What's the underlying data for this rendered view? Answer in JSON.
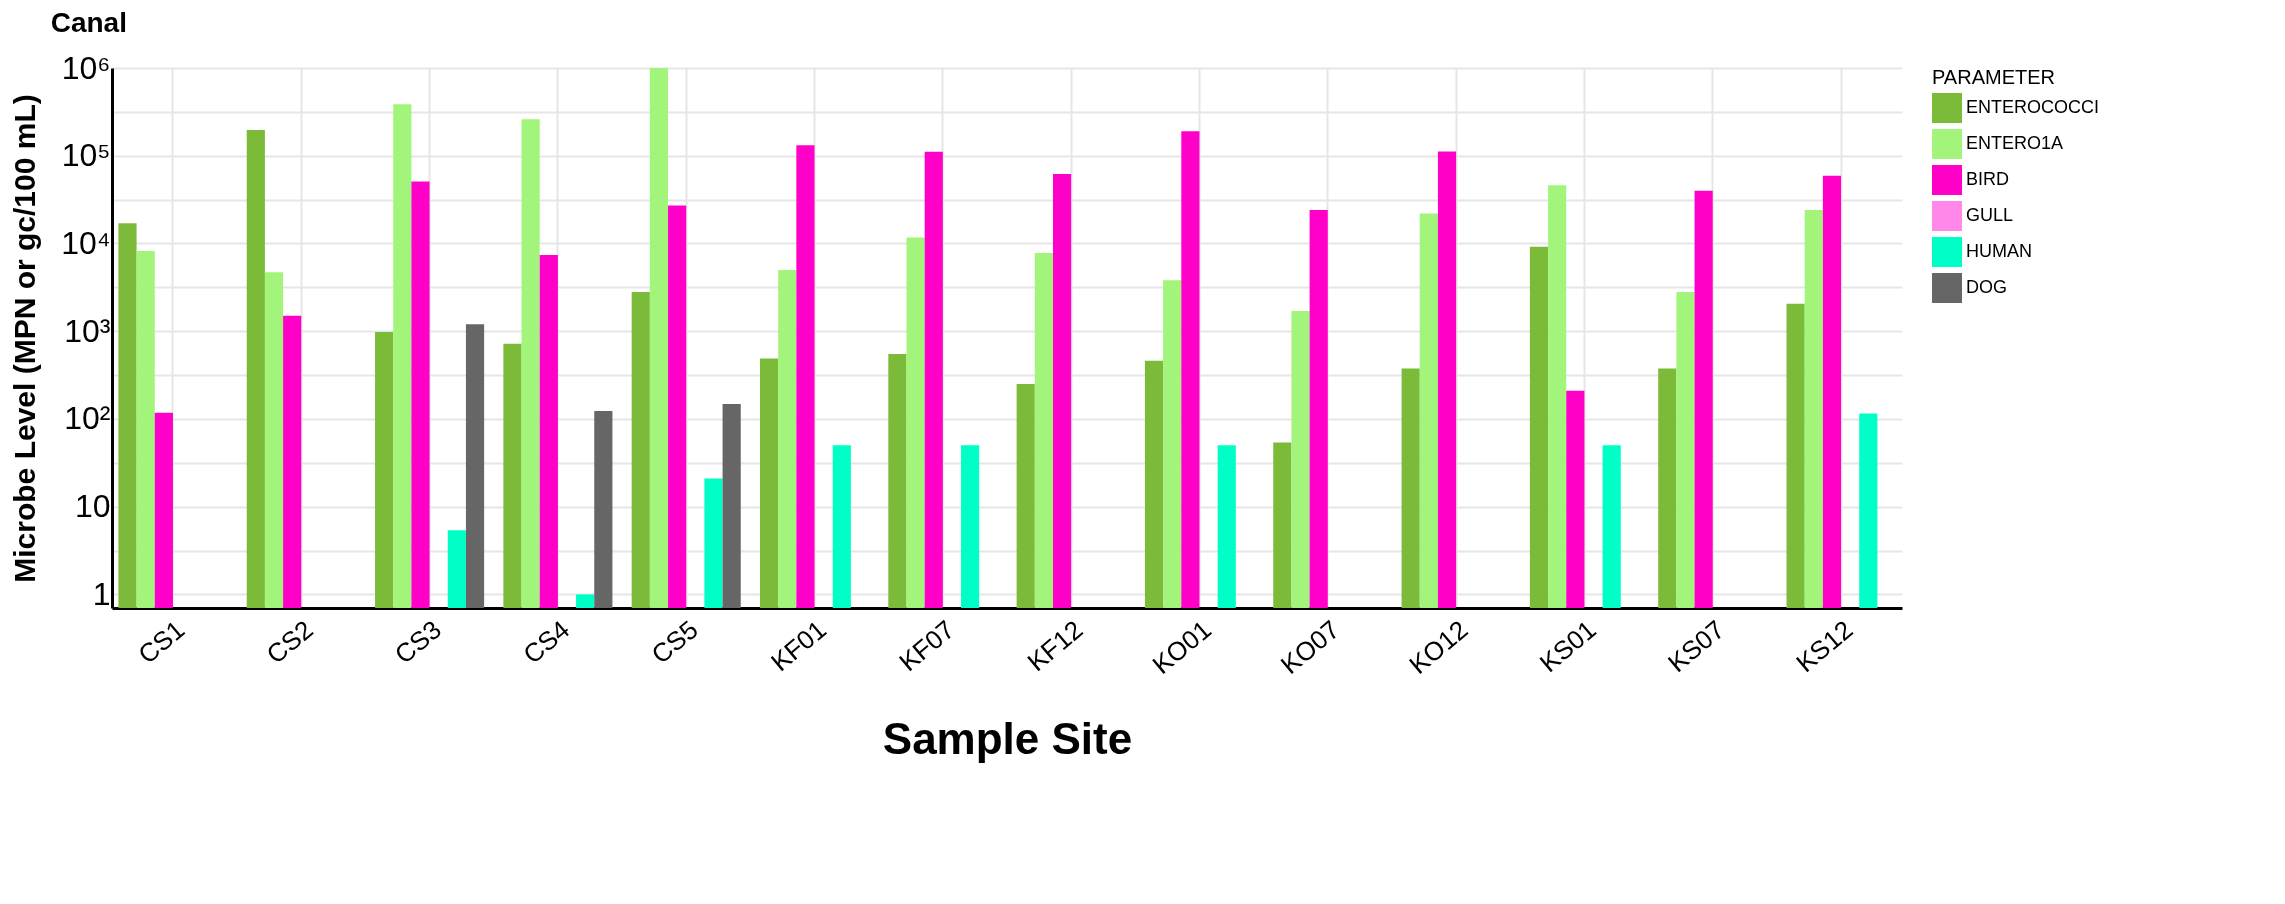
{
  "chart_data": {
    "type": "bar",
    "title": "Canal",
    "xlabel": "Sample Site",
    "ylabel": "Microbe Level (MPN or gc/100 mL)",
    "legend_title": "PARAMETER",
    "legend": "right",
    "grid": true,
    "log": true,
    "categories": [
      "CS1",
      "CS2",
      "CS3",
      "CS4",
      "CS5",
      "KF01",
      "KF07",
      "KF12",
      "KO01",
      "KO07",
      "KO12",
      "KS01",
      "KS07",
      "KS12"
    ],
    "ylim": [
      0.7,
      1000000
    ],
    "yticks": [
      1,
      {
        "value": 3.16,
        "label": null
      },
      10,
      {
        "value": 31.6,
        "label": null
      },
      {
        "value": 100,
        "label": "10²"
      },
      {
        "value": 316,
        "label": null
      },
      {
        "value": 1000,
        "label": "10³"
      },
      {
        "value": 3160,
        "label": null
      },
      {
        "value": 10000,
        "label": "10⁴"
      },
      {
        "value": 31600,
        "label": null
      },
      {
        "value": 100000,
        "label": "10⁵"
      },
      {
        "value": 316000,
        "label": null
      },
      {
        "value": 1000000,
        "label": "10⁶"
      }
    ],
    "series": [
      {
        "name": "ENTEROCOCCI",
        "color": "#7cba3a",
        "values": [
          17000,
          197000,
          980,
          720,
          2800,
          490,
          550,
          250,
          460,
          54,
          375,
          9200,
          375,
          2050
        ]
      },
      {
        "name": "ENTERO1A",
        "color": "#a2f57a",
        "values": [
          8200,
          4700,
          385000,
          260000,
          1000000,
          5000,
          11700,
          7800,
          3800,
          1700,
          22000,
          46000,
          2800,
          24000
        ]
      },
      {
        "name": "BIRD",
        "color": "#ff00c8",
        "values": [
          118,
          1500,
          51000,
          7400,
          27000,
          132000,
          111000,
          62000,
          190000,
          24000,
          112000,
          210,
          40000,
          59000
        ]
      },
      {
        "name": "GULL",
        "color": "#ff88e8",
        "values": [
          null,
          null,
          null,
          null,
          null,
          null,
          null,
          null,
          null,
          null,
          null,
          null,
          null,
          null
        ]
      },
      {
        "name": "HUMAN",
        "color": "#00ffc6",
        "values": [
          null,
          null,
          5.4,
          1,
          21,
          50,
          50,
          null,
          50,
          null,
          null,
          50,
          null,
          115
        ]
      },
      {
        "name": "DOG",
        "color": "#666666",
        "values": [
          null,
          null,
          1200,
          123,
          148,
          null,
          null,
          null,
          null,
          null,
          null,
          null,
          null,
          null
        ]
      }
    ]
  }
}
